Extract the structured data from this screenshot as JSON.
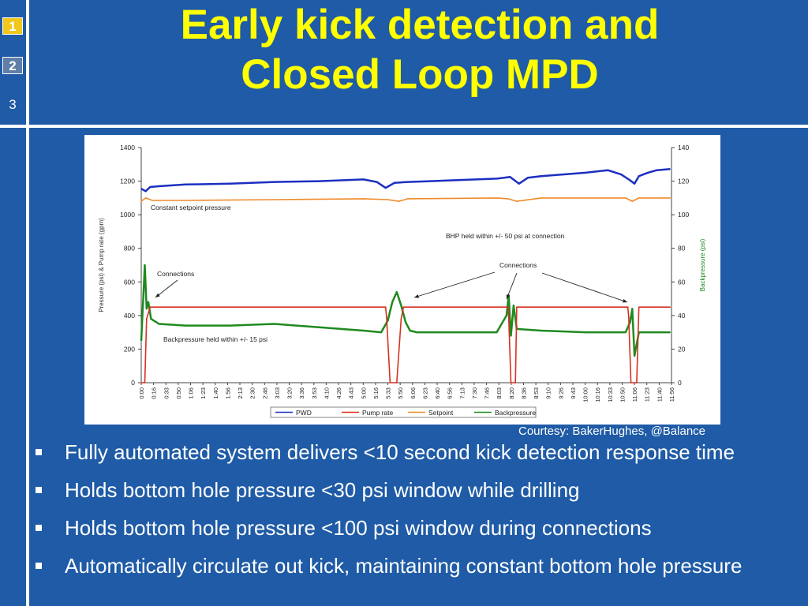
{
  "slide_numbers": [
    "1",
    "2",
    "3"
  ],
  "title_line1": "Early kick detection and",
  "title_line2": "Closed Loop MPD",
  "credit": "Courtesy: BakerHughes, @Balance",
  "bullets": [
    "Fully automated system delivers <10 second kick detection response time",
    "Holds bottom hole pressure <30 psi window while drilling",
    "Holds bottom hole pressure <100 psi window during connections",
    "Automatically circulate out kick, maintaining constant bottom hole pressure"
  ],
  "colors": {
    "background": "#1f5ba6",
    "title": "#ffff00",
    "pwd": "#1c2fc0",
    "pump": "#d83020",
    "setpoint": "#f08a2c",
    "backpressure": "#1f8a1f"
  },
  "chart_data": {
    "type": "line",
    "ylabel": "Pressure (psi) & Pump rate (gpm)",
    "y2label": "Backpressure (psi)",
    "ylim": [
      0,
      1400
    ],
    "y2lim": [
      0,
      140
    ],
    "yticks": [
      "0",
      "200",
      "400",
      "600",
      "800",
      "1000",
      "1200",
      "1400"
    ],
    "y2ticks": [
      "0",
      "20",
      "40",
      "60",
      "80",
      "100",
      "120",
      "140"
    ],
    "xticks": [
      "0:00",
      "0:16",
      "0:33",
      "0:50",
      "1:06",
      "1:23",
      "1:40",
      "1:56",
      "2:13",
      "2:30",
      "2:46",
      "3:03",
      "3:20",
      "3:36",
      "3:53",
      "4:10",
      "4:26",
      "4:43",
      "5:00",
      "5:16",
      "5:33",
      "5:50",
      "6:06",
      "6:23",
      "6:40",
      "6:56",
      "7:13",
      "7:30",
      "7:46",
      "8:03",
      "8:20",
      "8:36",
      "8:53",
      "9:10",
      "9:26",
      "9:43",
      "10:00",
      "10:16",
      "10:33",
      "10:50",
      "11:06",
      "11:23",
      "11:40",
      "11:56"
    ],
    "legend": [
      "PWD",
      "Pump rate",
      "Setpoint",
      "Backpressure"
    ],
    "legend_position": "bottom",
    "grid": false,
    "annotations": [
      "Constant setpoint pressure",
      "BHP held within +/- 50 psi at connection",
      "Connections",
      "Backpressure held within +/- 15 psi",
      "Connections"
    ],
    "series": [
      {
        "name": "PWD",
        "axis": "left",
        "x": [
          0,
          0.1,
          0.2,
          0.4,
          1,
          2,
          3,
          4,
          5,
          5.3,
          5.5,
          5.7,
          6,
          6.5,
          7,
          8,
          8.3,
          8.5,
          8.7,
          9,
          10,
          10.5,
          10.8,
          11,
          11.1,
          11.2,
          11.4,
          11.6,
          11.9
        ],
        "values": [
          1155,
          1140,
          1165,
          1170,
          1180,
          1185,
          1195,
          1200,
          1210,
          1195,
          1160,
          1190,
          1195,
          1200,
          1205,
          1215,
          1225,
          1185,
          1220,
          1230,
          1250,
          1265,
          1240,
          1205,
          1185,
          1230,
          1250,
          1265,
          1272
        ]
      },
      {
        "name": "Pump rate",
        "axis": "left",
        "x": [
          0,
          0.08,
          0.12,
          0.2,
          5.5,
          5.52,
          5.6,
          5.75,
          5.85,
          5.9,
          8.25,
          8.27,
          8.32,
          8.42,
          8.45,
          10.95,
          10.97,
          11.02,
          11.15,
          11.2,
          11.9
        ],
        "values": [
          0,
          0,
          380,
          450,
          450,
          390,
          0,
          0,
          380,
          450,
          450,
          390,
          0,
          0,
          450,
          450,
          390,
          0,
          0,
          450,
          450
        ]
      },
      {
        "name": "Setpoint",
        "axis": "left",
        "x": [
          0,
          0.1,
          0.25,
          1,
          3,
          5,
          5.55,
          5.8,
          6,
          8,
          8.25,
          8.45,
          9,
          10.9,
          11.05,
          11.2,
          11.9
        ],
        "values": [
          1080,
          1100,
          1085,
          1085,
          1090,
          1095,
          1090,
          1080,
          1095,
          1100,
          1095,
          1080,
          1100,
          1100,
          1080,
          1100,
          1100
        ]
      },
      {
        "name": "Backpressure",
        "axis": "right",
        "x": [
          0,
          0.04,
          0.08,
          0.12,
          0.16,
          0.22,
          0.4,
          1,
          2,
          3,
          4,
          4.5,
          5,
          5.4,
          5.55,
          5.65,
          5.75,
          5.85,
          5.95,
          6.05,
          6.2,
          7,
          8,
          8.22,
          8.27,
          8.32,
          8.38,
          8.45,
          9,
          10,
          10.9,
          11,
          11.05,
          11.1,
          11.2,
          11.3,
          11.9
        ],
        "values": [
          25,
          48,
          70,
          44,
          48,
          38,
          35,
          34,
          34,
          35,
          33,
          32,
          31,
          30,
          37,
          48,
          54,
          46,
          36,
          31,
          30,
          30,
          30,
          40,
          52,
          28,
          46,
          32,
          31,
          30,
          30,
          36,
          44,
          16,
          30,
          30,
          30
        ]
      }
    ]
  }
}
